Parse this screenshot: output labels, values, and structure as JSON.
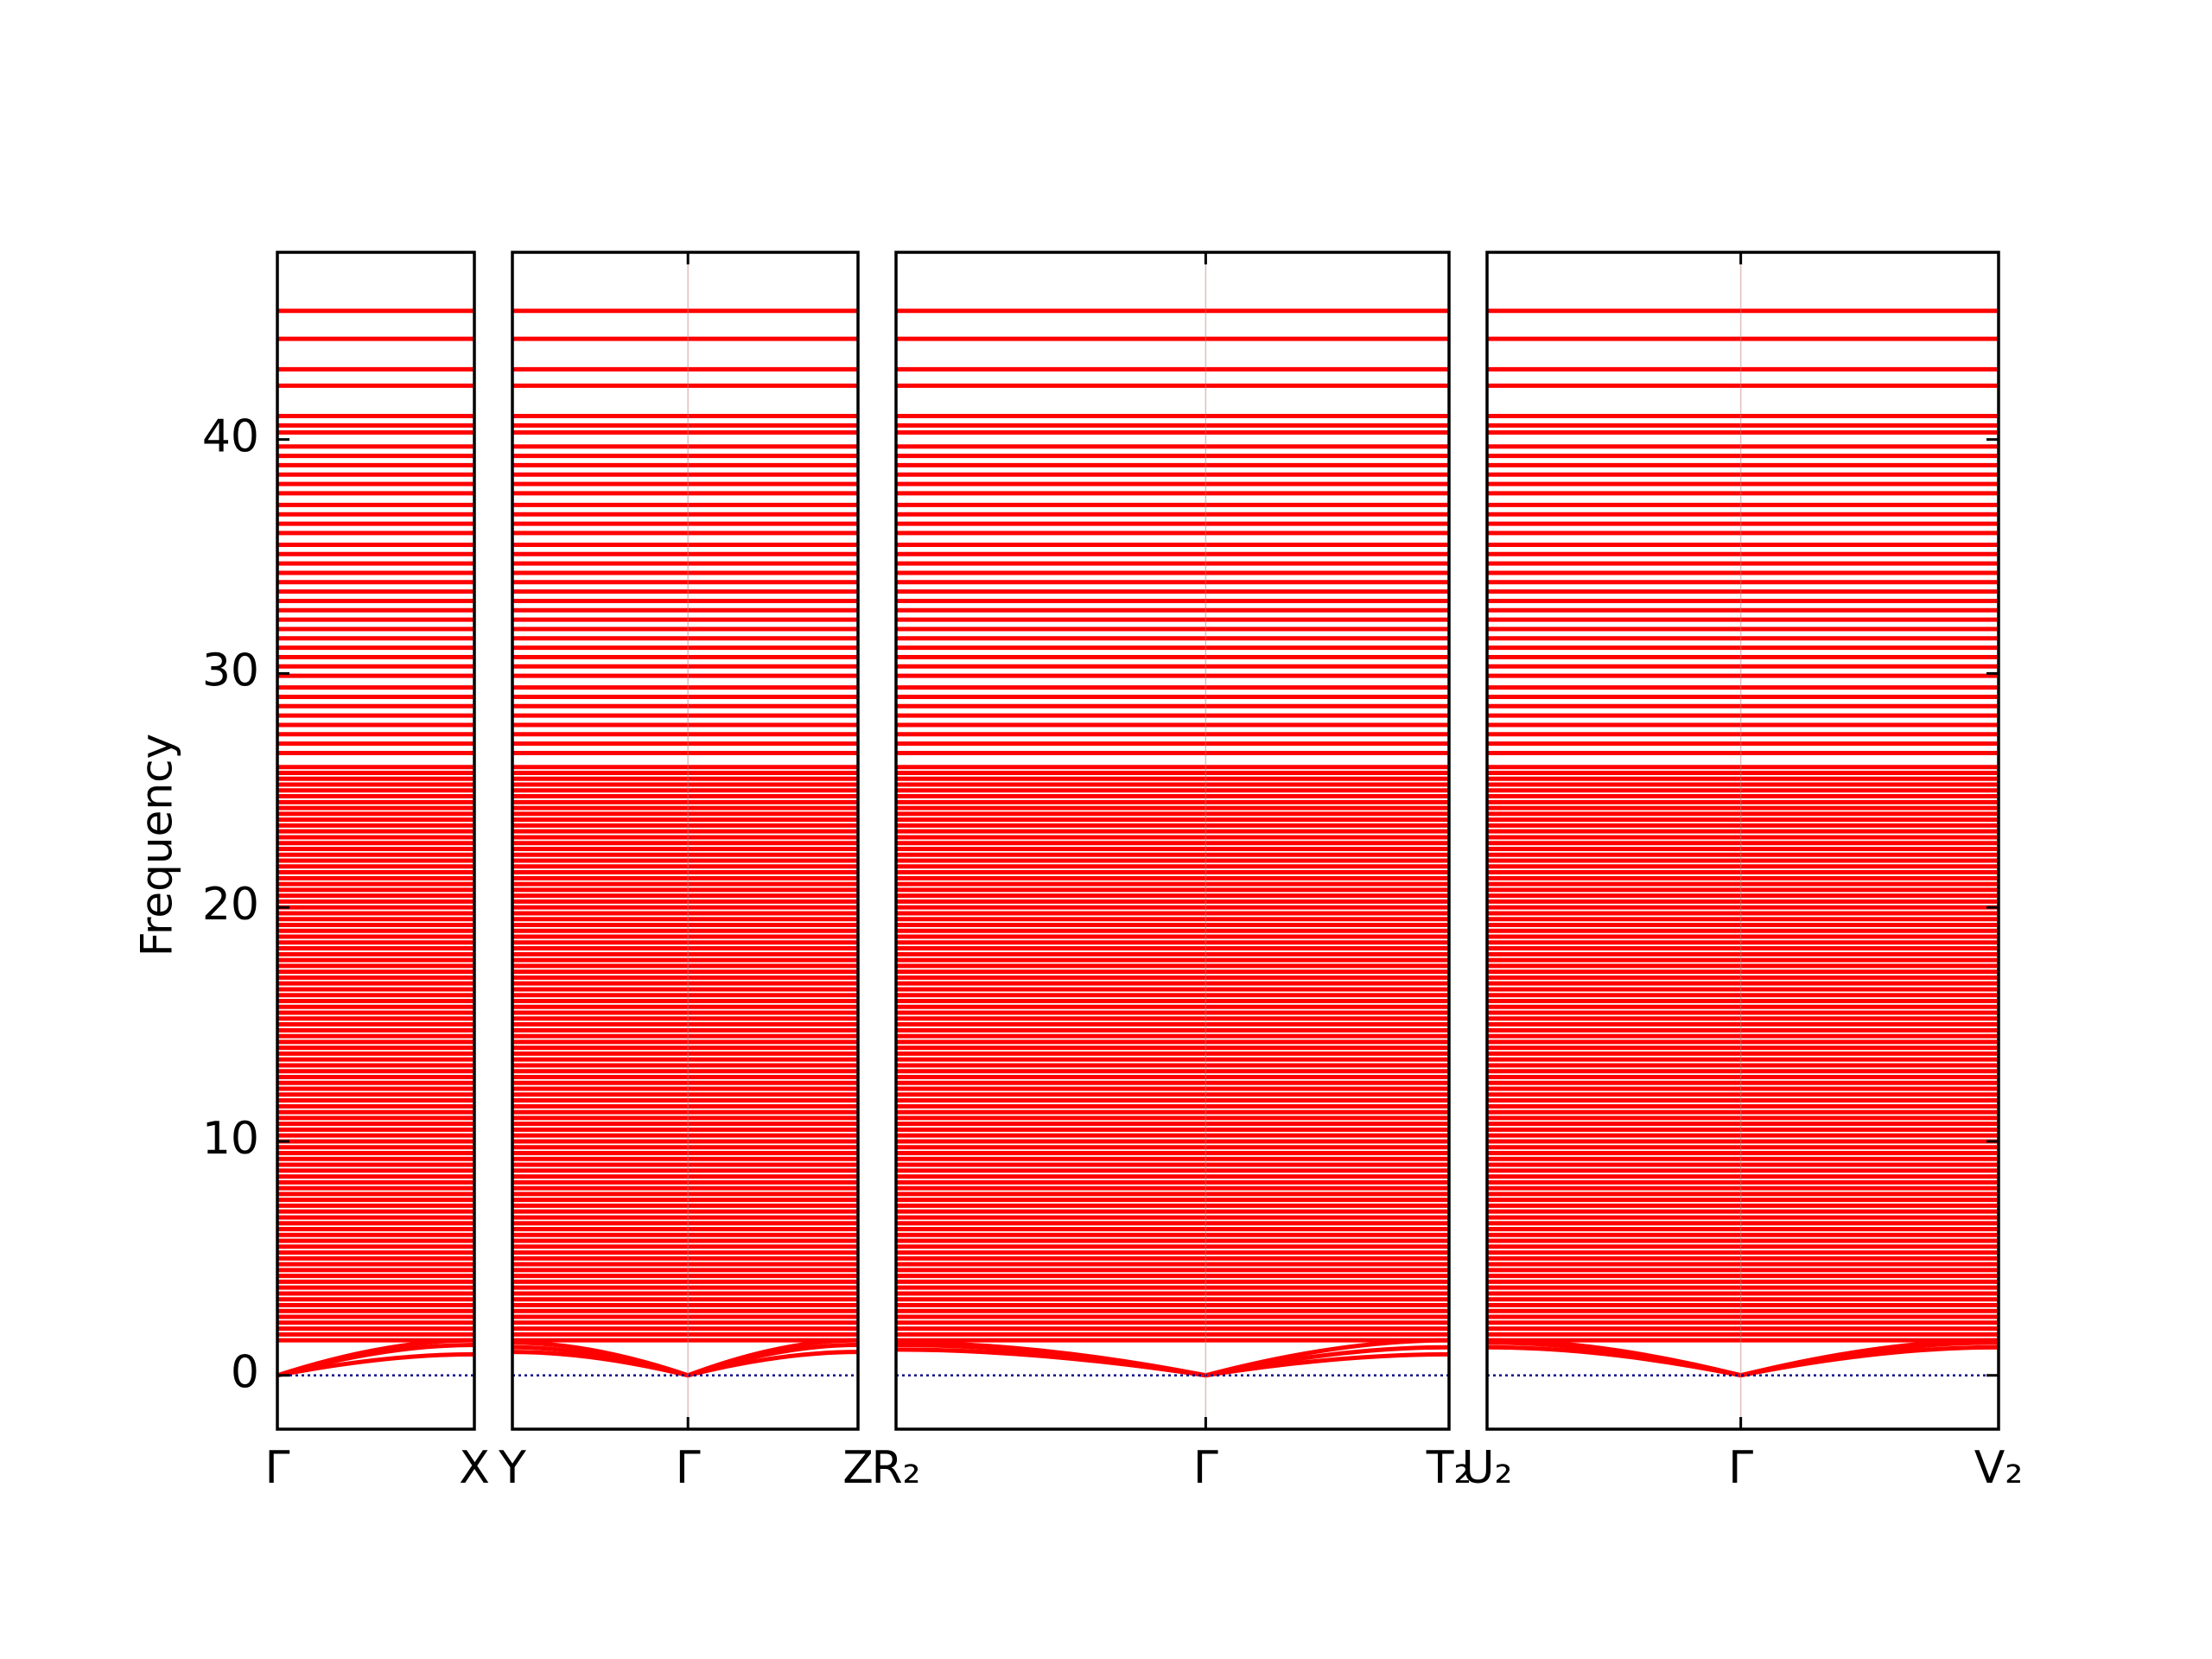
{
  "chart_data": {
    "type": "band",
    "ylabel": "Frequency",
    "ylim": [
      -2.3,
      48
    ],
    "yticks": [
      0,
      10,
      20,
      30,
      40
    ],
    "color": "#ff0000",
    "zero_line_color": "#00008b",
    "panels": [
      {
        "labels": [
          "Γ",
          "X"
        ],
        "acoustic": [
          [
            0,
            0.9
          ],
          [
            0,
            1.3
          ],
          [
            0,
            1.5
          ]
        ]
      },
      {
        "labels": [
          "Y",
          "Γ",
          "Z"
        ],
        "acoustic": [
          [
            1.0,
            0,
            1.0
          ],
          [
            1.2,
            0,
            1.3
          ],
          [
            1.4,
            0,
            1.5
          ]
        ]
      },
      {
        "labels": [
          "R₂",
          "Γ",
          "T₂"
        ],
        "acoustic": [
          [
            1.1,
            0,
            0.9
          ],
          [
            1.3,
            0,
            1.2
          ],
          [
            1.4,
            0,
            1.5
          ]
        ]
      },
      {
        "labels": [
          "U₂",
          "Γ",
          "V₂"
        ],
        "acoustic": [
          [
            1.2,
            0,
            1.2
          ],
          [
            1.4,
            0,
            1.4
          ],
          [
            1.5,
            0,
            1.5
          ]
        ]
      }
    ],
    "bands": [
      1.5,
      1.75,
      2.0,
      2.25,
      2.5,
      2.75,
      3.0,
      3.25,
      3.5,
      3.75,
      4.0,
      4.25,
      4.5,
      4.75,
      5.0,
      5.25,
      5.5,
      5.75,
      6.0,
      6.25,
      6.5,
      6.75,
      7.0,
      7.25,
      7.5,
      7.75,
      8.0,
      8.25,
      8.5,
      8.75,
      9.0,
      9.25,
      9.5,
      9.75,
      10.0,
      10.25,
      10.5,
      10.75,
      11.0,
      11.25,
      11.5,
      11.75,
      12.0,
      12.25,
      12.5,
      12.75,
      13.0,
      13.25,
      13.5,
      13.75,
      14.0,
      14.25,
      14.5,
      14.75,
      15.0,
      15.25,
      15.5,
      15.75,
      16.0,
      16.25,
      16.5,
      16.75,
      17.0,
      17.25,
      17.5,
      17.75,
      18.0,
      18.25,
      18.5,
      18.75,
      19.0,
      19.25,
      19.5,
      19.75,
      20.0,
      20.25,
      20.5,
      20.75,
      21.0,
      21.25,
      21.5,
      21.75,
      22.0,
      22.25,
      22.5,
      22.75,
      23.0,
      23.25,
      23.5,
      23.75,
      24.0,
      24.25,
      24.5,
      24.75,
      25.0,
      25.25,
      25.5,
      25.75,
      26.0,
      26.6,
      27.0,
      27.4,
      27.8,
      28.2,
      28.6,
      29.0,
      29.4,
      29.9,
      30.3,
      30.7,
      31.1,
      31.5,
      31.9,
      32.3,
      32.7,
      33.1,
      33.5,
      33.9,
      34.3,
      34.7,
      35.1,
      35.5,
      36.0,
      36.4,
      36.8,
      37.2,
      37.7,
      38.1,
      38.5,
      38.9,
      39.3,
      39.7,
      40.3,
      40.6,
      41.0,
      42.3,
      43.0,
      44.3,
      45.5
    ]
  }
}
